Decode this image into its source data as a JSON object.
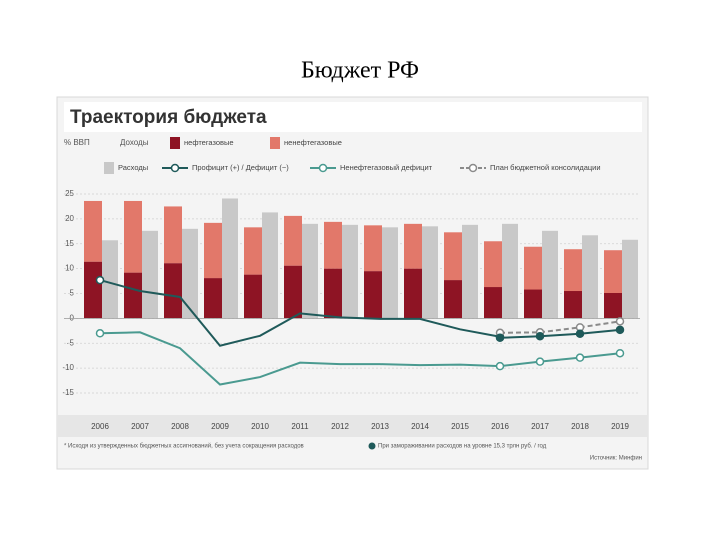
{
  "chart_data": {
    "type": "combo",
    "slide_title": "Бюджет РФ",
    "title": "Траектория бюджета",
    "axis_label": "% ВВП",
    "legend_header": "Доходы",
    "categories": [
      "2006",
      "2007",
      "2008",
      "2009",
      "2010",
      "2011",
      "2012",
      "2013",
      "2014",
      "2015",
      "2016",
      "2017",
      "2018",
      "2019"
    ],
    "series": [
      {
        "name": "нефтегазовые",
        "kind": "bar",
        "slot": 0,
        "stack": true,
        "color": "#8e1424",
        "values": [
          11.4,
          9.2,
          11.1,
          8.1,
          8.8,
          10.6,
          10.0,
          9.5,
          10.0,
          7.7,
          6.3,
          5.8,
          5.5,
          5.1
        ]
      },
      {
        "name": "ненефтегазовые",
        "kind": "bar",
        "slot": 0,
        "stack": true,
        "color": "#e2786a",
        "values": [
          12.2,
          14.4,
          11.4,
          11.1,
          9.5,
          10.0,
          9.4,
          9.2,
          9.0,
          9.6,
          9.2,
          8.6,
          8.4,
          8.6
        ]
      },
      {
        "name": "Расходы",
        "kind": "bar",
        "slot": 1,
        "stack": false,
        "color": "#c8c8c8",
        "values": [
          15.7,
          17.6,
          18.0,
          24.1,
          21.3,
          19.0,
          18.8,
          18.3,
          18.5,
          18.8,
          19.0,
          17.6,
          16.7,
          15.8
        ]
      },
      {
        "name": "Профицит (+) / Дефицит (−)",
        "kind": "line",
        "color": "#1f5a5a",
        "dashed": false,
        "markers": "ends",
        "marker_fill": "#ffffff",
        "values": [
          7.7,
          5.5,
          4.3,
          -5.5,
          -3.5,
          1.0,
          0.2,
          -0.1,
          -0.1,
          -2.2,
          -3.7,
          null,
          null,
          null
        ]
      },
      {
        "name": "Ненефтегазовый дефицит",
        "kind": "line",
        "color": "#4a9a90",
        "dashed": false,
        "markers": "forecast",
        "marker_fill": "#ffffff",
        "values": [
          -3.0,
          -2.8,
          -6.0,
          -13.3,
          -11.8,
          -8.9,
          -9.2,
          -9.2,
          -9.4,
          -9.3,
          -9.6,
          -8.7,
          -7.9,
          -7.0
        ]
      },
      {
        "name": "План бюджетной консолидации",
        "kind": "line",
        "color": "#8a8a8a",
        "dashed": true,
        "markers": "all",
        "marker_fill": "#ffffff",
        "values": [
          null,
          null,
          null,
          null,
          null,
          null,
          null,
          null,
          null,
          null,
          -2.9,
          -2.8,
          -1.8,
          -0.6
        ]
      },
      {
        "name": "При замораживании расходов на уровне 15,3 трлн руб. / год",
        "kind": "line",
        "color": "#1f5a5a",
        "dashed": false,
        "markers": "all",
        "marker_fill": "#1f5a5a",
        "legend": "footnote",
        "values": [
          null,
          null,
          null,
          null,
          null,
          null,
          null,
          null,
          null,
          null,
          -3.9,
          -3.6,
          -3.1,
          -2.3
        ]
      }
    ],
    "forecast_from": "2016",
    "ylim": [
      -15,
      25
    ],
    "yticks": [
      -15,
      -10,
      -5,
      0,
      5,
      10,
      15,
      20,
      25
    ],
    "grid": true,
    "footnote": "* Исходя из утвержденных бюджетных ассигнований, без учета сокращения расходов",
    "source": "Источник: Минфин"
  }
}
